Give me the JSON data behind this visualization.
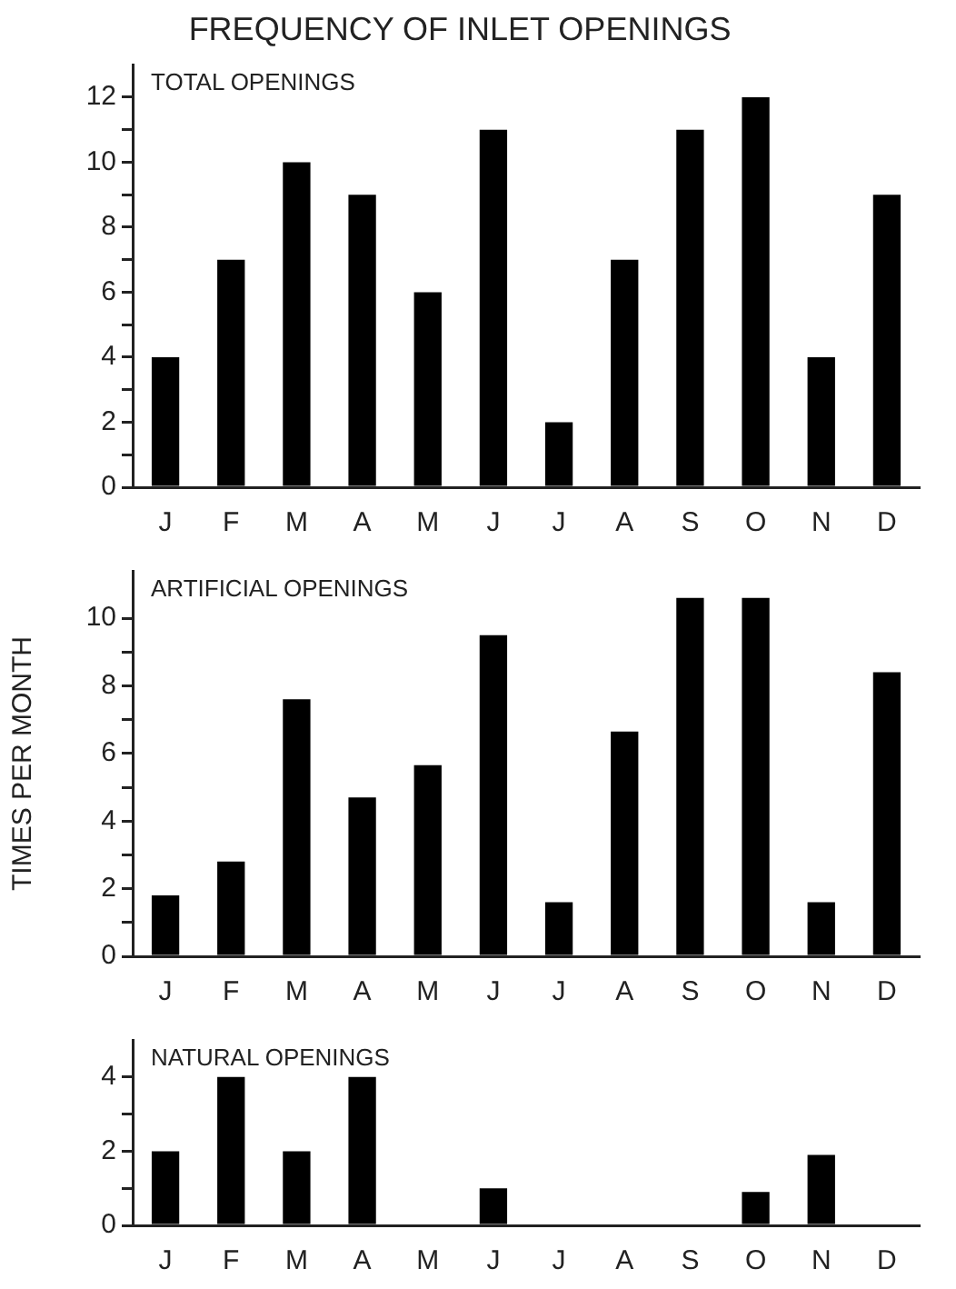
{
  "chart_data": [
    {
      "type": "bar",
      "title": "FREQUENCY OF INLET OPENINGS",
      "subtitle": "TOTAL OPENINGS",
      "categories": [
        "J",
        "F",
        "M",
        "A",
        "M",
        "J",
        "J",
        "A",
        "S",
        "O",
        "N",
        "D"
      ],
      "values": [
        4,
        7,
        10,
        9,
        6,
        11,
        2,
        7,
        11,
        12,
        4,
        9
      ],
      "color": "#000000",
      "ylim": [
        0,
        13
      ],
      "yticks": [
        0,
        {
          "value": 1,
          "label": null
        },
        2,
        {
          "value": 3,
          "label": null
        },
        4,
        {
          "value": 5,
          "label": null
        },
        6,
        {
          "value": 7,
          "label": null
        },
        8,
        {
          "value": 9,
          "label": null
        },
        10,
        {
          "value": 11,
          "label": null
        },
        12
      ],
      "grid": false
    },
    {
      "type": "bar",
      "subtitle": "ARTIFICIAL OPENINGS",
      "ylabel": "TIMES PER MONTH",
      "categories": [
        "J",
        "F",
        "M",
        "A",
        "M",
        "J",
        "J",
        "A",
        "S",
        "O",
        "N",
        "D"
      ],
      "values": [
        1.8,
        2.8,
        7.6,
        4.7,
        5.65,
        9.5,
        1.6,
        6.65,
        10.6,
        10.6,
        1.6,
        8.4
      ],
      "color": "#000000",
      "ylim": [
        0,
        11.4
      ],
      "yticks": [
        0,
        {
          "value": 1,
          "label": null
        },
        2,
        {
          "value": 3,
          "label": null
        },
        4,
        {
          "value": 5,
          "label": null
        },
        6,
        {
          "value": 7,
          "label": null
        },
        8,
        {
          "value": 9,
          "label": null
        },
        10
      ],
      "grid": false
    },
    {
      "type": "bar",
      "subtitle": "NATURAL OPENINGS",
      "categories": [
        "J",
        "F",
        "M",
        "A",
        "M",
        "J",
        "J",
        "A",
        "S",
        "O",
        "N",
        "D"
      ],
      "values": [
        2,
        4,
        2,
        4,
        0,
        1,
        0,
        0,
        0,
        0.9,
        1.9,
        0
      ],
      "color": "#000000",
      "ylim": [
        0,
        5
      ],
      "yticks": [
        0,
        {
          "value": 1,
          "label": null
        },
        2,
        {
          "value": 3,
          "label": null
        },
        4
      ],
      "grid": false
    }
  ]
}
